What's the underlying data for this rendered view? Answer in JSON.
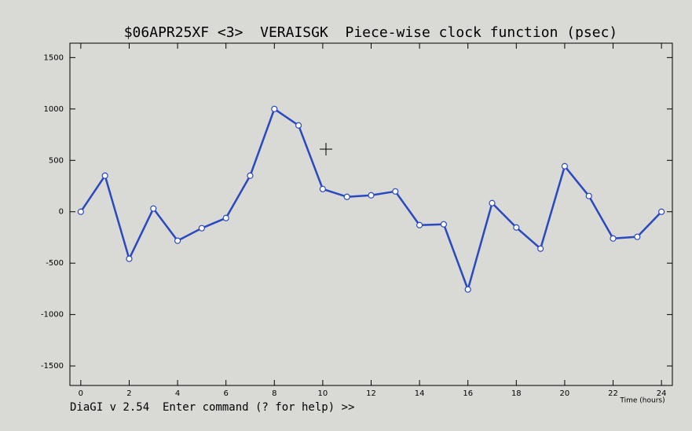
{
  "chart_data": {
    "type": "line",
    "title": "$06APR25XF <3>  VERAISGK  Piece-wise clock function (psec)",
    "x_label": "Time (hours)",
    "prompt": "DiaGI v 2.54  Enter command (? for help) >>",
    "x": [
      0,
      1,
      2,
      3,
      4,
      5,
      6,
      7,
      8,
      9,
      10,
      11,
      12,
      13,
      14,
      15,
      16,
      17,
      18,
      19,
      20,
      21,
      22,
      23,
      24
    ],
    "series": [
      {
        "name": "clock function",
        "color": "#2a48c0",
        "values": [
          0,
          351,
          -458,
          31,
          -282,
          -160,
          -61,
          351,
          1000,
          840,
          221,
          145,
          160,
          198,
          -130,
          -122,
          -756,
          84,
          -153,
          -359,
          443,
          153,
          -260,
          -244,
          0
        ]
      }
    ],
    "xlim": [
      -0.45,
      24.45
    ],
    "ylim": [
      -1690,
      1640
    ],
    "xticks": [
      0,
      2,
      4,
      6,
      8,
      10,
      12,
      14,
      16,
      18,
      20,
      22,
      24
    ],
    "yticks": [
      -1500,
      -1000,
      -500,
      0,
      500,
      1000,
      1500
    ]
  }
}
